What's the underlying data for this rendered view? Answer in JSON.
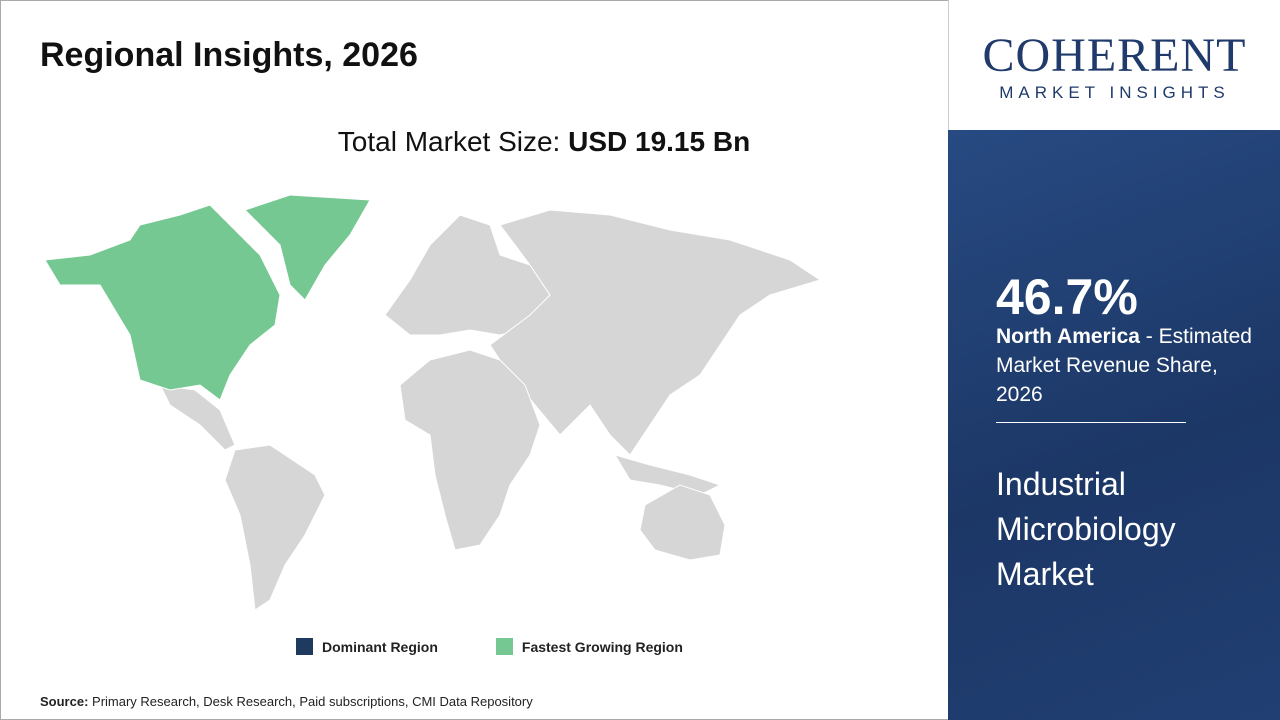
{
  "header": {
    "title": "Regional Insights, 2026"
  },
  "market_size": {
    "label": "Total Market Size:",
    "value": "USD 19.15 Bn"
  },
  "legend": {
    "items": [
      {
        "label": "Dominant Region",
        "color": "#1f3a5f"
      },
      {
        "label": "Fastest Growing Region",
        "color": "#76c893"
      }
    ]
  },
  "source": {
    "label": "Source:",
    "text": "Primary Research, Desk Research, Paid subscriptions, CMI Data Repository"
  },
  "logo": {
    "name": "COHERENT",
    "tagline": "MARKET INSIGHTS"
  },
  "panel": {
    "share": "46.7%",
    "region": "North America",
    "description": " - Estimated Market Revenue Share, 2026",
    "market": "Industrial Microbiology Market"
  }
}
